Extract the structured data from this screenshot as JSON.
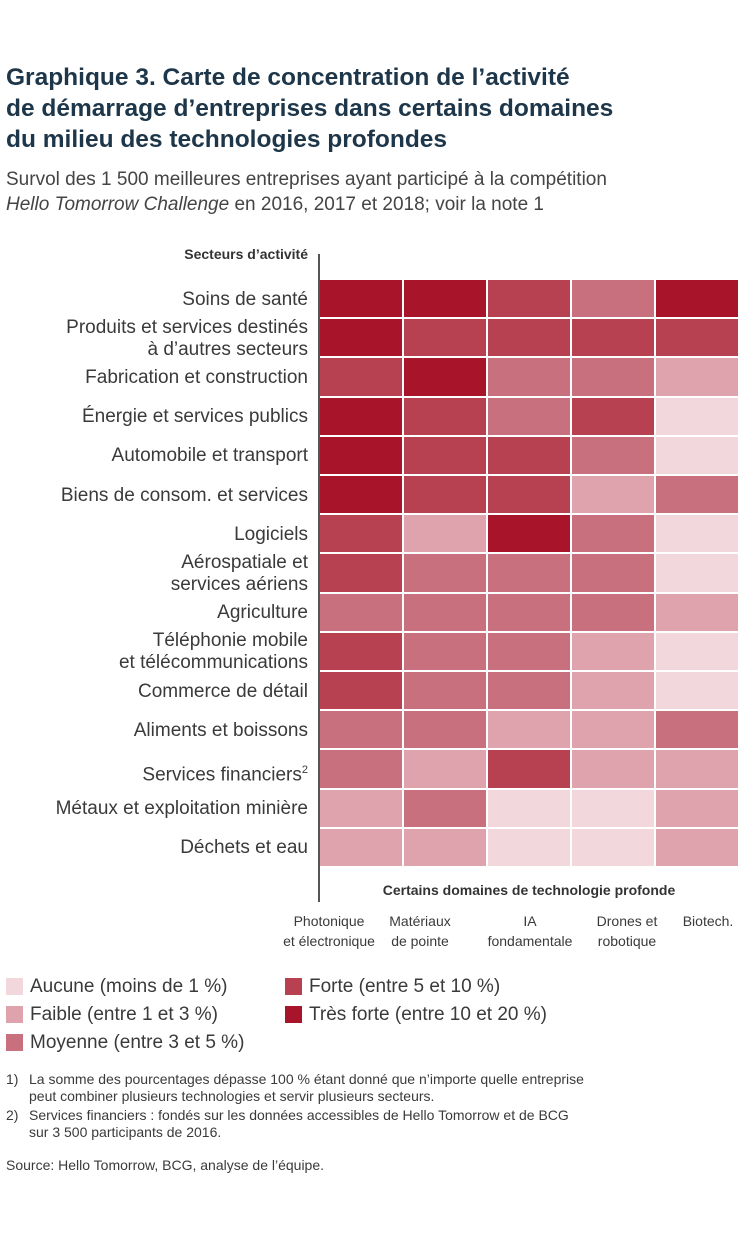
{
  "title_lines": [
    "Graphique 3. Carte de concentration de l’activité",
    "de démarrage d’entreprises dans certains domaines",
    "du milieu des technologies profondes"
  ],
  "subtitle": {
    "line1": "Survol des 1 500 meilleures entreprises ayant participé à la compétition",
    "line2_italic": "Hello Tomorrow Challenge",
    "line2_rest": " en 2016, 2017 et 2018; voir la note 1"
  },
  "colors": {
    "aucune": "#f2d8dc",
    "faible": "#dfa3ad",
    "moyenne": "#c8707d",
    "forte": "#b84151",
    "tres_forte": "#a81429"
  },
  "chart_data": {
    "type": "heatmap",
    "ylabel": "Secteurs d’activité",
    "xlabel": "Certains domaines de technologie profonde",
    "rows": [
      {
        "label": [
          "Soins de santé"
        ],
        "sup": ""
      },
      {
        "label": [
          "Produits et services destinés",
          "à d’autres secteurs"
        ],
        "sup": ""
      },
      {
        "label": [
          "Fabrication et construction"
        ],
        "sup": ""
      },
      {
        "label": [
          "Énergie et services publics"
        ],
        "sup": ""
      },
      {
        "label": [
          "Automobile et transport"
        ],
        "sup": ""
      },
      {
        "label": [
          "Biens de consom. et services"
        ],
        "sup": ""
      },
      {
        "label": [
          "Logiciels"
        ],
        "sup": ""
      },
      {
        "label": [
          "Aérospatiale et",
          "services aériens"
        ],
        "sup": ""
      },
      {
        "label": [
          "Agriculture"
        ],
        "sup": ""
      },
      {
        "label": [
          "Téléphonie mobile",
          "et télécommunications"
        ],
        "sup": ""
      },
      {
        "label": [
          "Commerce de détail"
        ],
        "sup": ""
      },
      {
        "label": [
          "Aliments et boissons"
        ],
        "sup": ""
      },
      {
        "label": [
          "Services financiers"
        ],
        "sup": "2"
      },
      {
        "label": [
          "Métaux et exploitation minière"
        ],
        "sup": ""
      },
      {
        "label": [
          "Déchets et eau"
        ],
        "sup": ""
      }
    ],
    "columns": [
      [
        "Photonique",
        "et électronique"
      ],
      [
        "Matériaux",
        "de pointe"
      ],
      [
        "IA",
        "fondamentale"
      ],
      [
        "Drones et",
        "robotique"
      ],
      [
        "Biotech."
      ]
    ],
    "levels": [
      "aucune",
      "faible",
      "moyenne",
      "forte",
      "tres_forte"
    ],
    "values": [
      [
        4,
        4,
        3,
        2,
        4
      ],
      [
        4,
        3,
        3,
        3,
        3
      ],
      [
        3,
        4,
        2,
        2,
        1
      ],
      [
        4,
        3,
        2,
        3,
        0
      ],
      [
        4,
        3,
        3,
        2,
        0
      ],
      [
        4,
        3,
        3,
        1,
        2
      ],
      [
        3,
        1,
        4,
        2,
        0
      ],
      [
        3,
        2,
        2,
        2,
        0
      ],
      [
        2,
        2,
        2,
        2,
        1
      ],
      [
        3,
        2,
        2,
        1,
        0
      ],
      [
        3,
        2,
        2,
        1,
        0
      ],
      [
        2,
        2,
        1,
        1,
        2
      ],
      [
        2,
        1,
        3,
        1,
        1
      ],
      [
        1,
        2,
        0,
        0,
        1
      ],
      [
        1,
        1,
        0,
        0,
        1
      ]
    ],
    "legend": [
      {
        "level": "aucune",
        "label": "Aucune (moins de 1 %)"
      },
      {
        "level": "forte",
        "label": "Forte (entre 5 et 10 %)"
      },
      {
        "level": "faible",
        "label": "Faible (entre 1 et 3 %)"
      },
      {
        "level": "tres_forte",
        "label": "Très forte (entre 10 et 20 %)"
      },
      {
        "level": "moyenne",
        "label": "Moyenne (entre 3 et 5 %)"
      }
    ]
  },
  "notes": [
    {
      "num": "1)",
      "lines": [
        "La somme des pourcentages dépasse 100 % étant donné que n’importe quelle entreprise",
        "peut combiner plusieurs technologies et servir plusieurs secteurs."
      ]
    },
    {
      "num": "2)",
      "lines": [
        "Services financiers : fondés sur les données accessibles de Hello Tomorrow et de BCG",
        "sur 3 500 participants de 2016."
      ]
    }
  ],
  "source": "Source: Hello Tomorrow, BCG, analyse de l’équipe."
}
